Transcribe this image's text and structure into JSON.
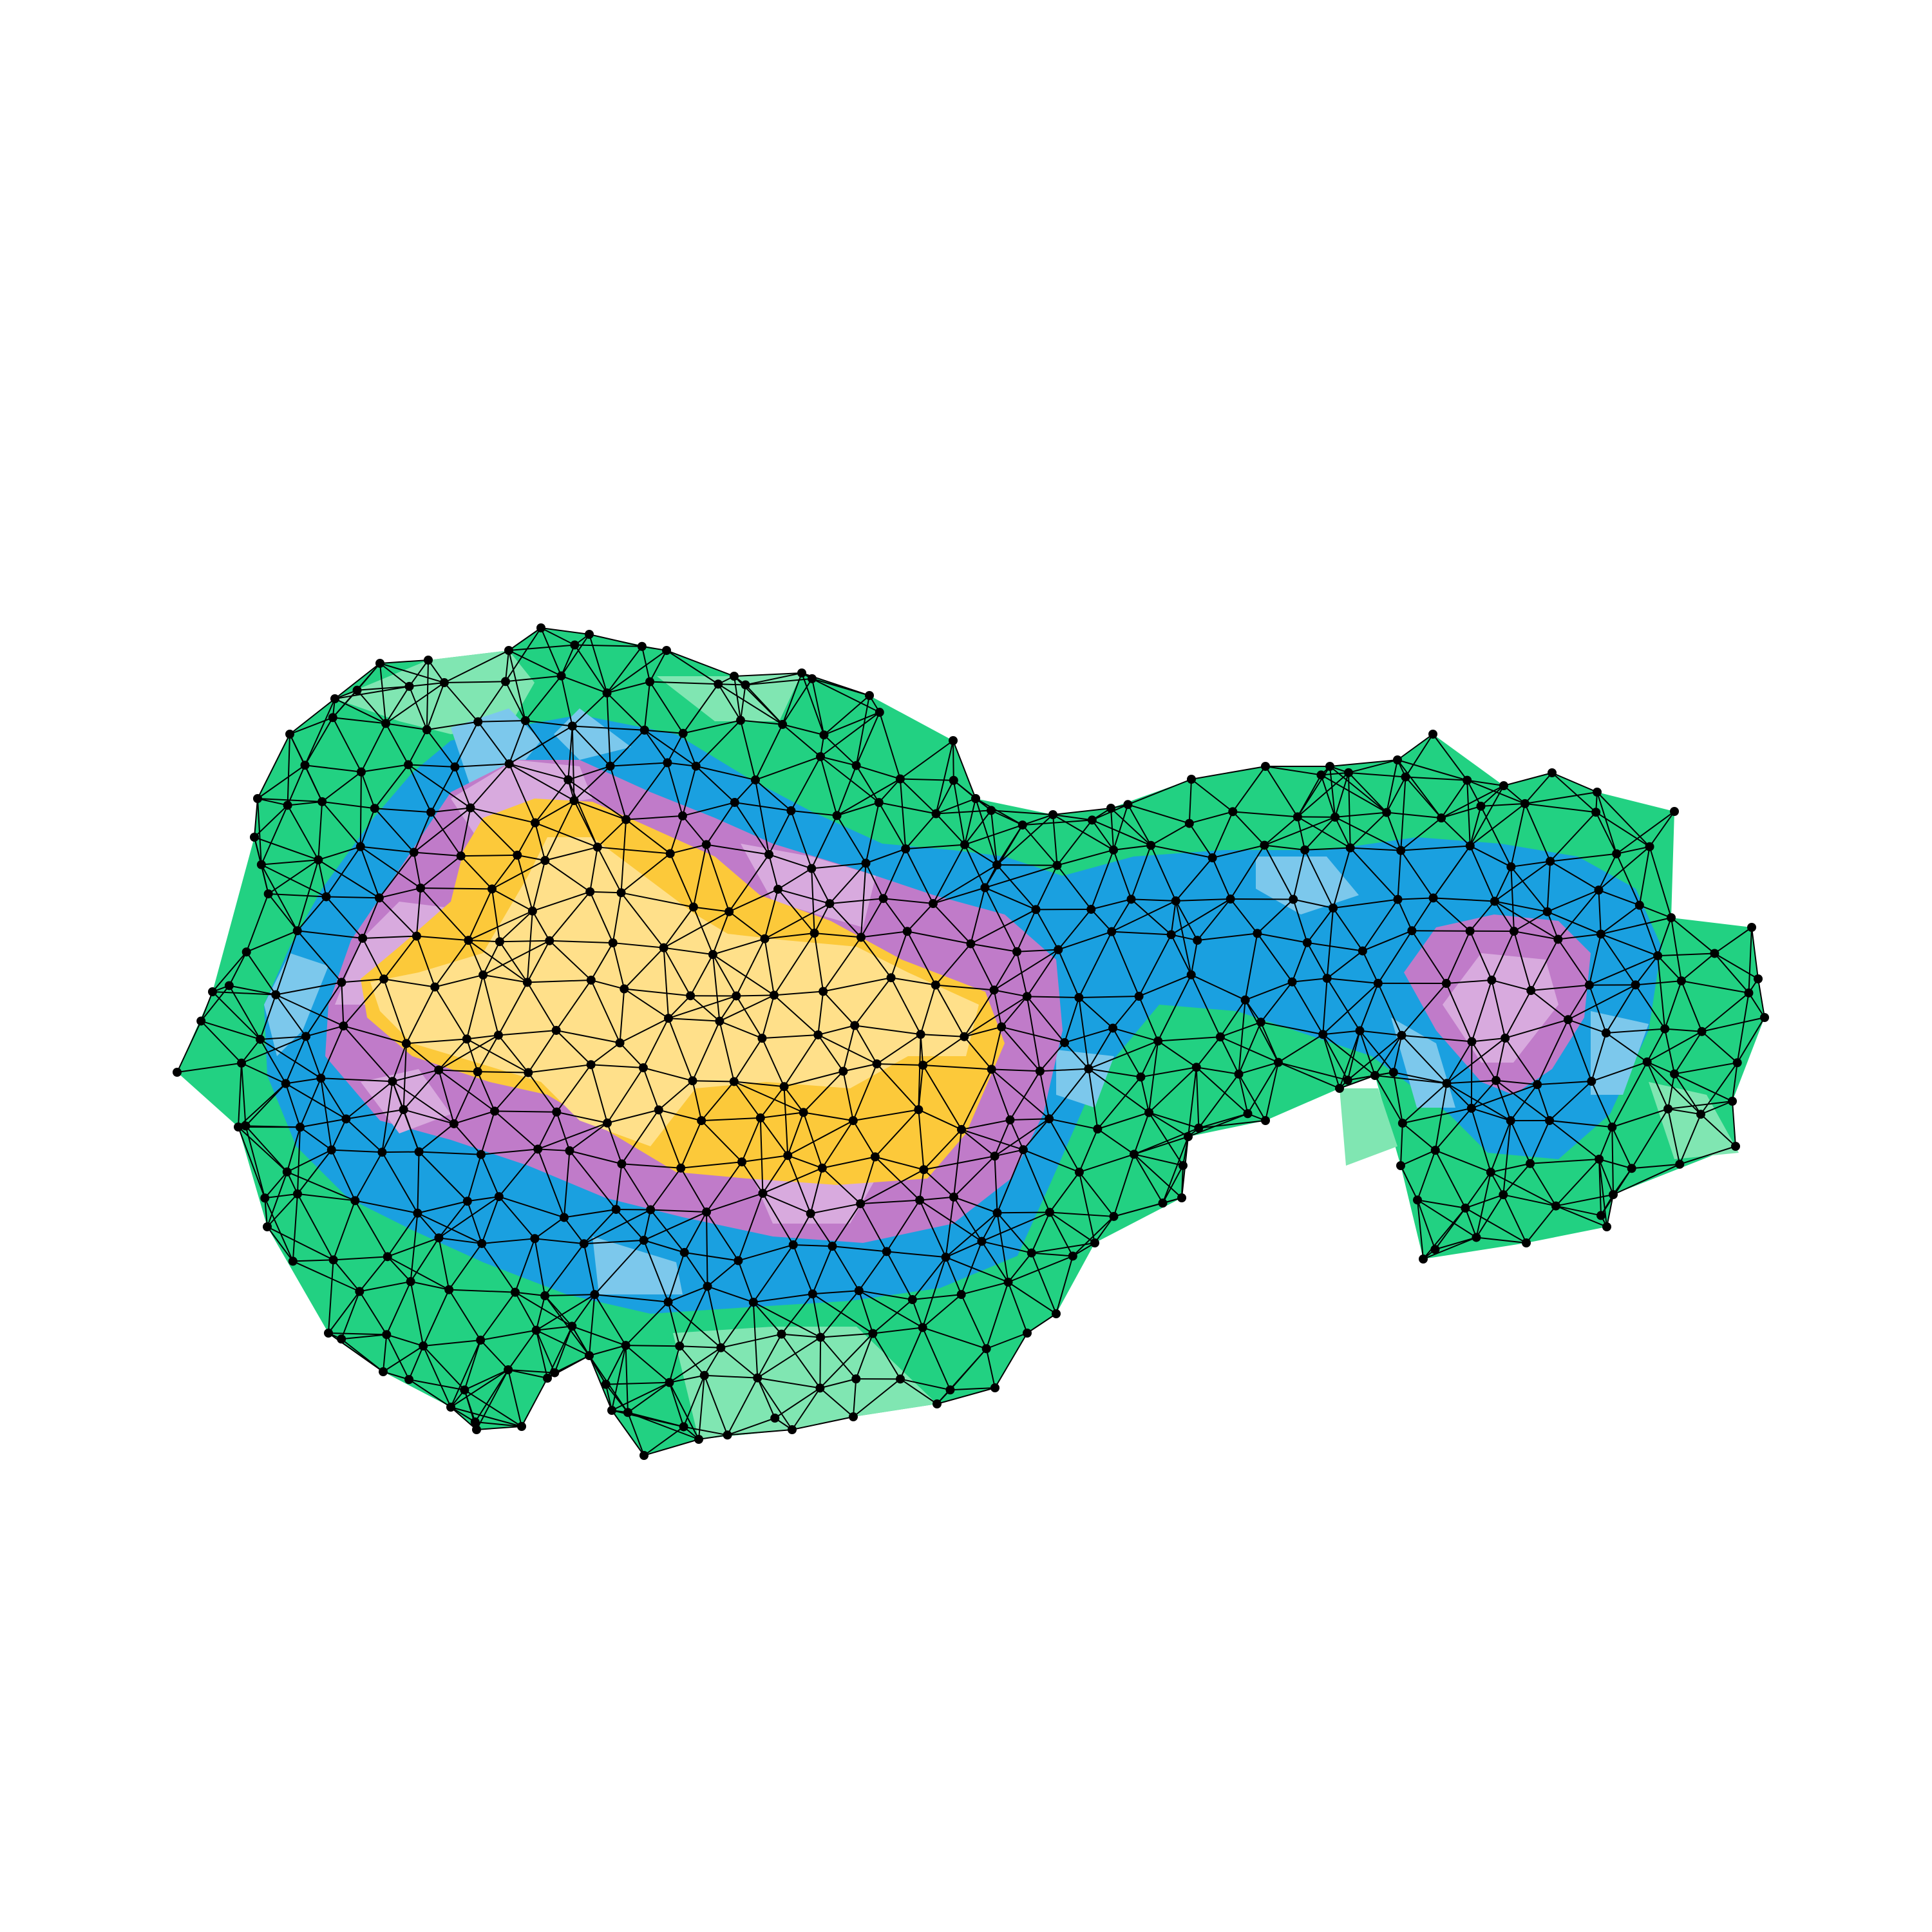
{
  "figure": {
    "description_type": "triangulated-mesh-contour",
    "palette": {
      "background": "#ffffff",
      "edge": "#000000",
      "node": "#000000",
      "levels": [
        "#ffe08a",
        "#fcc93a",
        "#d8aade",
        "#c07bc9",
        "#7cc8ec",
        "#1aa0e0",
        "#80e6b2",
        "#22d182"
      ]
    },
    "level_order": [
      "level-1-core-light-yellow",
      "level-2-yellow",
      "level-3-light-purple",
      "level-4-purple",
      "level-5-light-blue",
      "level-6-blue",
      "level-7-light-green",
      "level-8-green"
    ]
  }
}
